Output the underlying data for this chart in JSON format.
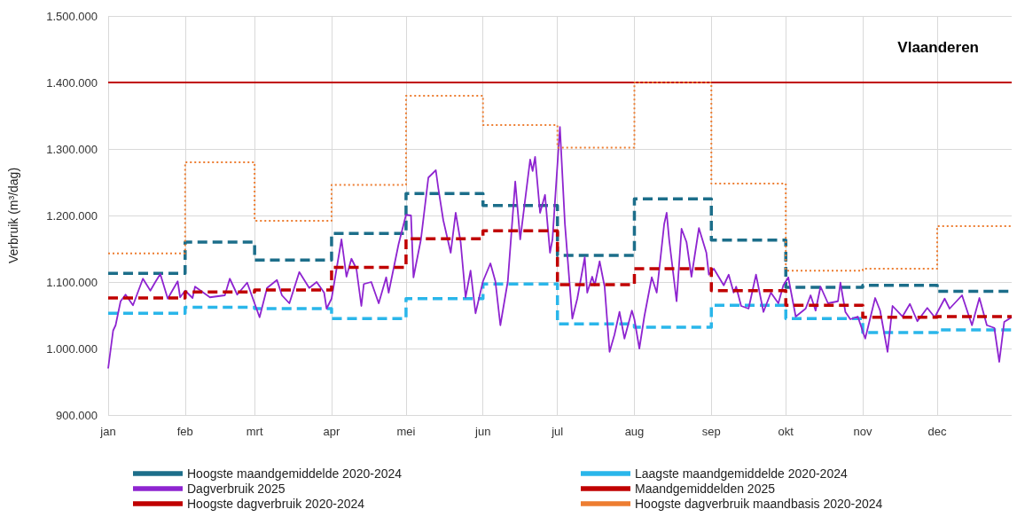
{
  "chart_data": {
    "type": "line",
    "title": "Vlaanderen",
    "ylabel": "Verbruik (m³/dag)",
    "xlim": [
      "--01-01",
      "--12-31"
    ],
    "xticks": [
      {
        "value": "--01-01",
        "label": "jan"
      },
      {
        "value": "--02-01",
        "label": "feb"
      },
      {
        "value": "--03-01",
        "label": "mrt"
      },
      {
        "value": "--04-01",
        "label": "apr"
      },
      {
        "value": "--05-01",
        "label": "mei"
      },
      {
        "value": "--06-01",
        "label": "jun"
      },
      {
        "value": "--07-01",
        "label": "jul"
      },
      {
        "value": "--08-01",
        "label": "aug"
      },
      {
        "value": "--09-01",
        "label": "sep"
      },
      {
        "value": "--10-01",
        "label": "okt"
      },
      {
        "value": "--11-01",
        "label": "nov"
      },
      {
        "value": "--12-01",
        "label": "dec"
      }
    ],
    "ylim": [
      900000,
      1500000
    ],
    "yticks": [
      {
        "value": 900000,
        "label": "900.000"
      },
      {
        "value": 1000000,
        "label": "1.000.000"
      },
      {
        "value": 1100000,
        "label": "1.100.000"
      },
      {
        "value": 1200000,
        "label": "1.200.000"
      },
      {
        "value": 1300000,
        "label": "1.300.000"
      },
      {
        "value": 1400000,
        "label": "1.400.000"
      },
      {
        "value": 1500000,
        "label": "1.500.000"
      }
    ],
    "grid": true,
    "legend": "bottom",
    "marker": "none",
    "series": [
      {
        "name": "Hoogste maandgemiddelde 2020-2024",
        "type": "step",
        "line_style": "dashed",
        "color": "#1c6e8a",
        "x": [
          "--01-01",
          "--02-01",
          "--03-01",
          "--04-01",
          "--05-01",
          "--06-01",
          "--07-01",
          "--08-01",
          "--09-01",
          "--10-01",
          "--11-01",
          "--12-01",
          "--12-31"
        ],
        "values": [
          1113000,
          1160000,
          1133000,
          1173000,
          1233000,
          1215000,
          1140000,
          1225000,
          1163000,
          1092000,
          1095000,
          1086000,
          1086000
        ]
      },
      {
        "name": "Laagste maandgemiddelde 2020-2024",
        "type": "step",
        "line_style": "dashed",
        "color": "#2ab6ea",
        "x": [
          "--01-01",
          "--02-01",
          "--03-01",
          "--04-01",
          "--05-01",
          "--06-01",
          "--07-01",
          "--08-01",
          "--09-01",
          "--10-01",
          "--11-01",
          "--12-01",
          "--12-31"
        ],
        "values": [
          1053000,
          1062000,
          1060000,
          1045000,
          1075000,
          1097000,
          1037000,
          1032000,
          1065000,
          1045000,
          1024000,
          1028000,
          1028000
        ]
      },
      {
        "name": "Dagverbruik 2025",
        "line_style": "solid",
        "color": "#8e24d0",
        "x": [
          "--01-01",
          "--01-03",
          "--01-04",
          "--01-06",
          "--01-08",
          "--01-11",
          "--01-15",
          "--01-18",
          "--01-20",
          "--01-22",
          "--01-25",
          "--01-29",
          "--01-30",
          "--02-01",
          "--02-04",
          "--02-05",
          "--02-11",
          "--02-17",
          "--02-19",
          "--02-22",
          "--02-26",
          "--03-03",
          "--03-06",
          "--03-10",
          "--03-12",
          "--03-15",
          "--03-19",
          "--03-23",
          "--03-26",
          "--03-29",
          "--03-30",
          "--04-01",
          "--04-05",
          "--04-07",
          "--04-09",
          "--04-11",
          "--04-13",
          "--04-14",
          "--04-17",
          "--04-20",
          "--04-23",
          "--04-24",
          "--04-28",
          "--05-01",
          "--05-03",
          "--05-04",
          "--05-07",
          "--05-10",
          "--05-13",
          "--05-14",
          "--05-16",
          "--05-19",
          "--05-21",
          "--05-23",
          "--05-25",
          "--05-27",
          "--05-29",
          "--06-01",
          "--06-04",
          "--06-06",
          "--06-08",
          "--06-11",
          "--06-14",
          "--06-16",
          "--06-20",
          "--06-21",
          "--06-22",
          "--06-24",
          "--06-26",
          "--06-28",
          "--06-29",
          "--07-02",
          "--07-04",
          "--07-07",
          "--07-09",
          "--07-12",
          "--07-13",
          "--07-15",
          "--07-16",
          "--07-18",
          "--07-20",
          "--07-22",
          "--07-24",
          "--07-26",
          "--07-28",
          "--07-31",
          "--08-01",
          "--08-03",
          "--08-05",
          "--08-08",
          "--08-10",
          "--08-13",
          "--08-14",
          "--08-15",
          "--08-18",
          "--08-20",
          "--08-22",
          "--08-24",
          "--08-27",
          "--08-30",
          "--08-31",
          "--09-02",
          "--09-06",
          "--09-08",
          "--09-10",
          "--09-11",
          "--09-13",
          "--09-16",
          "--09-19",
          "--09-22",
          "--09-25",
          "--09-28",
          "--09-30",
          "--10-02",
          "--10-05",
          "--10-09",
          "--10-11",
          "--10-13",
          "--10-15",
          "--10-18",
          "--10-22",
          "--10-23",
          "--10-25",
          "--10-27",
          "--10-30",
          "--11-02",
          "--11-06",
          "--11-08",
          "--11-11",
          "--11-13",
          "--11-17",
          "--11-20",
          "--11-23",
          "--11-27",
          "--11-30",
          "--12-04",
          "--12-06",
          "--12-11",
          "--12-15",
          "--12-18",
          "--12-21",
          "--12-24",
          "--12-26",
          "--12-28",
          "--12-31"
        ],
        "values": [
          970000,
          1027000,
          1035000,
          1071000,
          1081000,
          1065000,
          1105000,
          1087000,
          1100000,
          1112000,
          1075000,
          1101000,
          1077000,
          1087000,
          1076000,
          1093000,
          1077000,
          1080000,
          1105000,
          1081000,
          1099000,
          1047000,
          1091000,
          1103000,
          1080000,
          1068000,
          1115000,
          1091000,
          1100000,
          1084000,
          1060000,
          1075000,
          1164000,
          1108000,
          1135000,
          1120000,
          1064000,
          1097000,
          1100000,
          1068000,
          1107000,
          1084000,
          1157000,
          1201000,
          1200000,
          1107000,
          1164000,
          1257000,
          1268000,
          1241000,
          1193000,
          1144000,
          1204000,
          1160000,
          1077000,
          1117000,
          1053000,
          1101000,
          1128000,
          1101000,
          1035000,
          1101000,
          1251000,
          1164000,
          1284000,
          1267000,
          1288000,
          1204000,
          1231000,
          1144000,
          1164000,
          1333000,
          1188000,
          1045000,
          1075000,
          1137000,
          1084000,
          1108000,
          1095000,
          1131000,
          1093000,
          995000,
          1021000,
          1055000,
          1015000,
          1057000,
          1044000,
          1000000,
          1048000,
          1107000,
          1084000,
          1187000,
          1204000,
          1164000,
          1071000,
          1180000,
          1160000,
          1108000,
          1181000,
          1144000,
          1111000,
          1120000,
          1095000,
          1111000,
          1084000,
          1093000,
          1064000,
          1060000,
          1111000,
          1055000,
          1084000,
          1068000,
          1095000,
          1107000,
          1048000,
          1060000,
          1080000,
          1057000,
          1093000,
          1068000,
          1071000,
          1099000,
          1055000,
          1044000,
          1048000,
          1015000,
          1076000,
          1057000,
          995000,
          1064000,
          1048000,
          1067000,
          1041000,
          1061000,
          1047000,
          1075000,
          1060000,
          1080000,
          1035000,
          1076000,
          1035000,
          1031000,
          980000,
          1040000,
          1047000
        ]
      },
      {
        "name": "Maandgemiddelden 2025",
        "type": "step",
        "line_style": "dashed",
        "color": "#c00000",
        "x": [
          "--01-01",
          "--02-01",
          "--03-01",
          "--04-01",
          "--05-01",
          "--06-01",
          "--07-01",
          "--08-01",
          "--09-01",
          "--10-01",
          "--11-01",
          "--12-01",
          "--12-31"
        ],
        "values": [
          1076000,
          1085000,
          1088000,
          1122000,
          1165000,
          1177000,
          1096000,
          1120000,
          1087000,
          1065000,
          1047000,
          1048000,
          1048000
        ]
      },
      {
        "name": "Hoogste dagverbruik 2020-2024",
        "line_style": "solid",
        "color": "#c00000",
        "x": [
          "--01-01",
          "--12-31"
        ],
        "values": [
          1400000,
          1400000
        ]
      },
      {
        "name": "Hoogste dagverbruik maandbasis 2020-2024",
        "type": "step",
        "line_style": "dotted",
        "color": "#ed7d31",
        "x": [
          "--01-01",
          "--02-01",
          "--03-01",
          "--04-01",
          "--05-01",
          "--06-01",
          "--07-01",
          "--08-01",
          "--09-01",
          "--10-01",
          "--11-01",
          "--12-01",
          "--12-31"
        ],
        "values": [
          1143000,
          1280000,
          1192000,
          1246000,
          1380000,
          1336000,
          1302000,
          1400000,
          1248000,
          1117000,
          1120000,
          1184000,
          1184000
        ]
      }
    ]
  }
}
